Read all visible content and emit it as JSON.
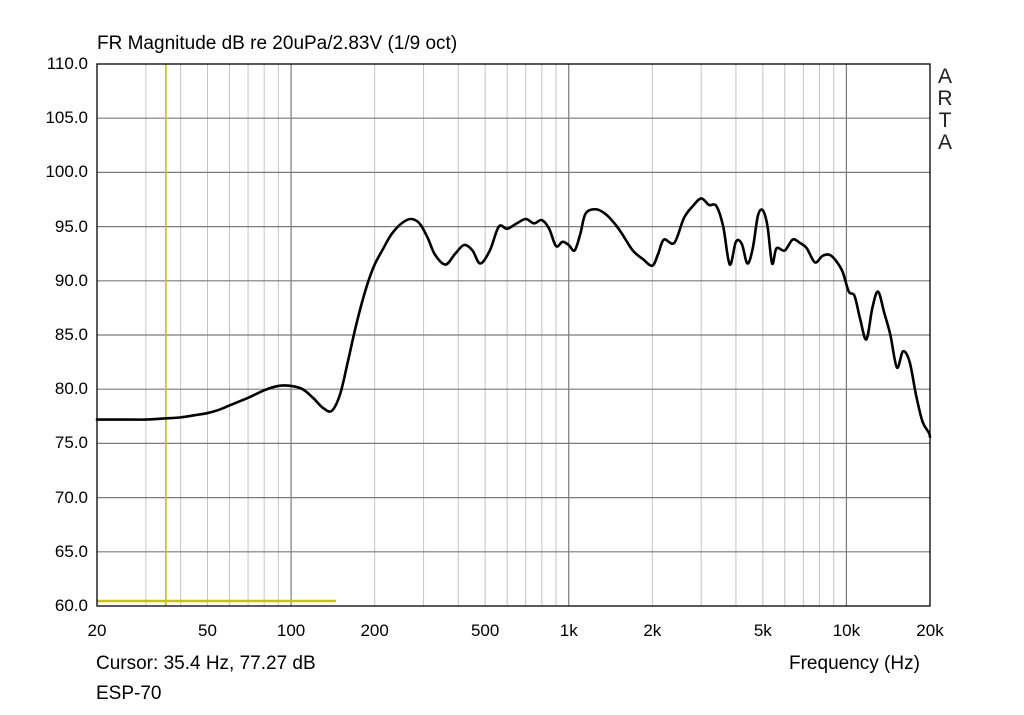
{
  "chart_data": {
    "type": "line",
    "title": "FR Magnitude dB re 20uPa/2.83V (1/9 oct)",
    "xlabel": "Frequency (Hz)",
    "ylabel": "",
    "x_scale": "log",
    "xlim": [
      20,
      20000
    ],
    "ylim": [
      60,
      110
    ],
    "grid": true,
    "x_ticks": [
      {
        "value": 20,
        "label": "20"
      },
      {
        "value": 50,
        "label": "50"
      },
      {
        "value": 100,
        "label": "100"
      },
      {
        "value": 200,
        "label": "200"
      },
      {
        "value": 500,
        "label": "500"
      },
      {
        "value": 1000,
        "label": "1k"
      },
      {
        "value": 2000,
        "label": "2k"
      },
      {
        "value": 5000,
        "label": "5k"
      },
      {
        "value": 10000,
        "label": "10k"
      },
      {
        "value": 20000,
        "label": "20k"
      }
    ],
    "y_ticks": [
      "60.0",
      "65.0",
      "70.0",
      "75.0",
      "80.0",
      "85.0",
      "90.0",
      "95.0",
      "100.0",
      "105.0",
      "110.0"
    ],
    "series": [
      {
        "name": "ESP-70",
        "color": "#000000",
        "x": [
          20,
          25,
          30,
          35,
          40,
          45,
          50,
          55,
          60,
          70,
          80,
          90,
          100,
          110,
          120,
          130,
          140,
          150,
          160,
          170,
          180,
          190,
          200,
          215,
          230,
          250,
          270,
          290,
          310,
          330,
          360,
          390,
          420,
          450,
          480,
          520,
          560,
          600,
          650,
          700,
          750,
          800,
          850,
          900,
          950,
          1000,
          1050,
          1100,
          1150,
          1250,
          1350,
          1450,
          1550,
          1700,
          1850,
          2000,
          2100,
          2200,
          2400,
          2600,
          2800,
          3000,
          3200,
          3400,
          3600,
          3800,
          4000,
          4200,
          4400,
          4600,
          4800,
          5000,
          5200,
          5400,
          5600,
          6000,
          6400,
          6800,
          7200,
          7700,
          8200,
          8700,
          9200,
          9700,
          10200,
          10700,
          11200,
          11800,
          12400,
          13000,
          13700,
          14400,
          15200,
          16000,
          16900,
          17800,
          18800,
          19800,
          20000
        ],
        "y": [
          77.2,
          77.2,
          77.2,
          77.3,
          77.4,
          77.6,
          77.8,
          78.1,
          78.5,
          79.2,
          79.9,
          80.3,
          80.3,
          80.0,
          79.2,
          78.3,
          78.0,
          79.5,
          82.5,
          85.5,
          88.0,
          90.0,
          91.5,
          93.0,
          94.3,
          95.3,
          95.7,
          95.3,
          94.0,
          92.4,
          91.5,
          92.5,
          93.3,
          92.8,
          91.6,
          92.8,
          95.0,
          94.8,
          95.3,
          95.7,
          95.3,
          95.6,
          94.8,
          93.2,
          93.6,
          93.3,
          92.8,
          94.3,
          96.2,
          96.6,
          96.2,
          95.4,
          94.4,
          92.8,
          92.0,
          91.4,
          92.5,
          93.8,
          93.5,
          95.8,
          96.9,
          97.6,
          97.0,
          96.9,
          95.0,
          91.5,
          93.6,
          93.4,
          91.6,
          93.0,
          96.0,
          96.5,
          95.0,
          91.6,
          93.0,
          92.8,
          93.8,
          93.5,
          93.0,
          91.7,
          92.3,
          92.4,
          91.8,
          90.8,
          89.0,
          88.6,
          86.5,
          84.6,
          87.5,
          89.0,
          87.0,
          85.0,
          82.0,
          83.5,
          82.5,
          79.5,
          77.0,
          76.0,
          75.6
        ]
      }
    ],
    "cursor": {
      "x": 35.4,
      "color": "#c6c01a"
    },
    "cursor_marker": {
      "x_from": 20,
      "x_to": 145,
      "color": "#c6c01a"
    }
  },
  "labels": {
    "title": "FR Magnitude dB re 20uPa/2.83V (1/9 oct)",
    "cursor_readout": "Cursor: 35.4 Hz, 77.27 dB",
    "curve_name": "ESP-70",
    "xlabel": "Frequency (Hz)",
    "watermark": [
      "A",
      "R",
      "T",
      "A"
    ]
  }
}
